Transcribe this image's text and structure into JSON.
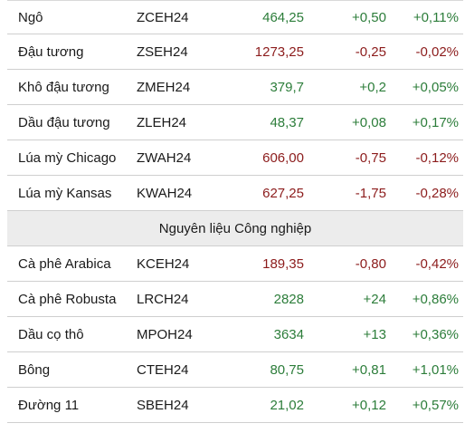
{
  "colors": {
    "up": "#2c7d3a",
    "down": "#8c1c1c",
    "section_bg": "#ececec"
  },
  "rows_group1": [
    {
      "name": "Ngô",
      "code": "ZCEH24",
      "price": "464,25",
      "change": "+0,50",
      "percent": "+0,11%",
      "direction": "up"
    },
    {
      "name": "Đậu tương",
      "code": "ZSEH24",
      "price": "1273,25",
      "change": "-0,25",
      "percent": "-0,02%",
      "direction": "down"
    },
    {
      "name": "Khô đậu tương",
      "code": "ZMEH24",
      "price": "379,7",
      "change": "+0,2",
      "percent": "+0,05%",
      "direction": "up"
    },
    {
      "name": "Dầu đậu tương",
      "code": "ZLEH24",
      "price": "48,37",
      "change": "+0,08",
      "percent": "+0,17%",
      "direction": "up"
    },
    {
      "name": "Lúa mỳ Chicago",
      "code": "ZWAH24",
      "price": "606,00",
      "change": "-0,75",
      "percent": "-0,12%",
      "direction": "down"
    },
    {
      "name": "Lúa mỳ Kansas",
      "code": "KWAH24",
      "price": "627,25",
      "change": "-1,75",
      "percent": "-0,28%",
      "direction": "down"
    }
  ],
  "section_title": "Nguyên liệu Công nghiệp",
  "rows_group2": [
    {
      "name": "Cà phê Arabica",
      "code": "KCEH24",
      "price": "189,35",
      "change": "-0,80",
      "percent": "-0,42%",
      "direction": "down"
    },
    {
      "name": "Cà phê Robusta",
      "code": "LRCH24",
      "price": "2828",
      "change": "+24",
      "percent": "+0,86%",
      "direction": "up"
    },
    {
      "name": "Dầu cọ thô",
      "code": "MPOH24",
      "price": "3634",
      "change": "+13",
      "percent": "+0,36%",
      "direction": "up"
    },
    {
      "name": "Bông",
      "code": "CTEH24",
      "price": "80,75",
      "change": "+0,81",
      "percent": "+1,01%",
      "direction": "up"
    },
    {
      "name": "Đường 11",
      "code": "SBEH24",
      "price": "21,02",
      "change": "+0,12",
      "percent": "+0,57%",
      "direction": "up"
    }
  ]
}
